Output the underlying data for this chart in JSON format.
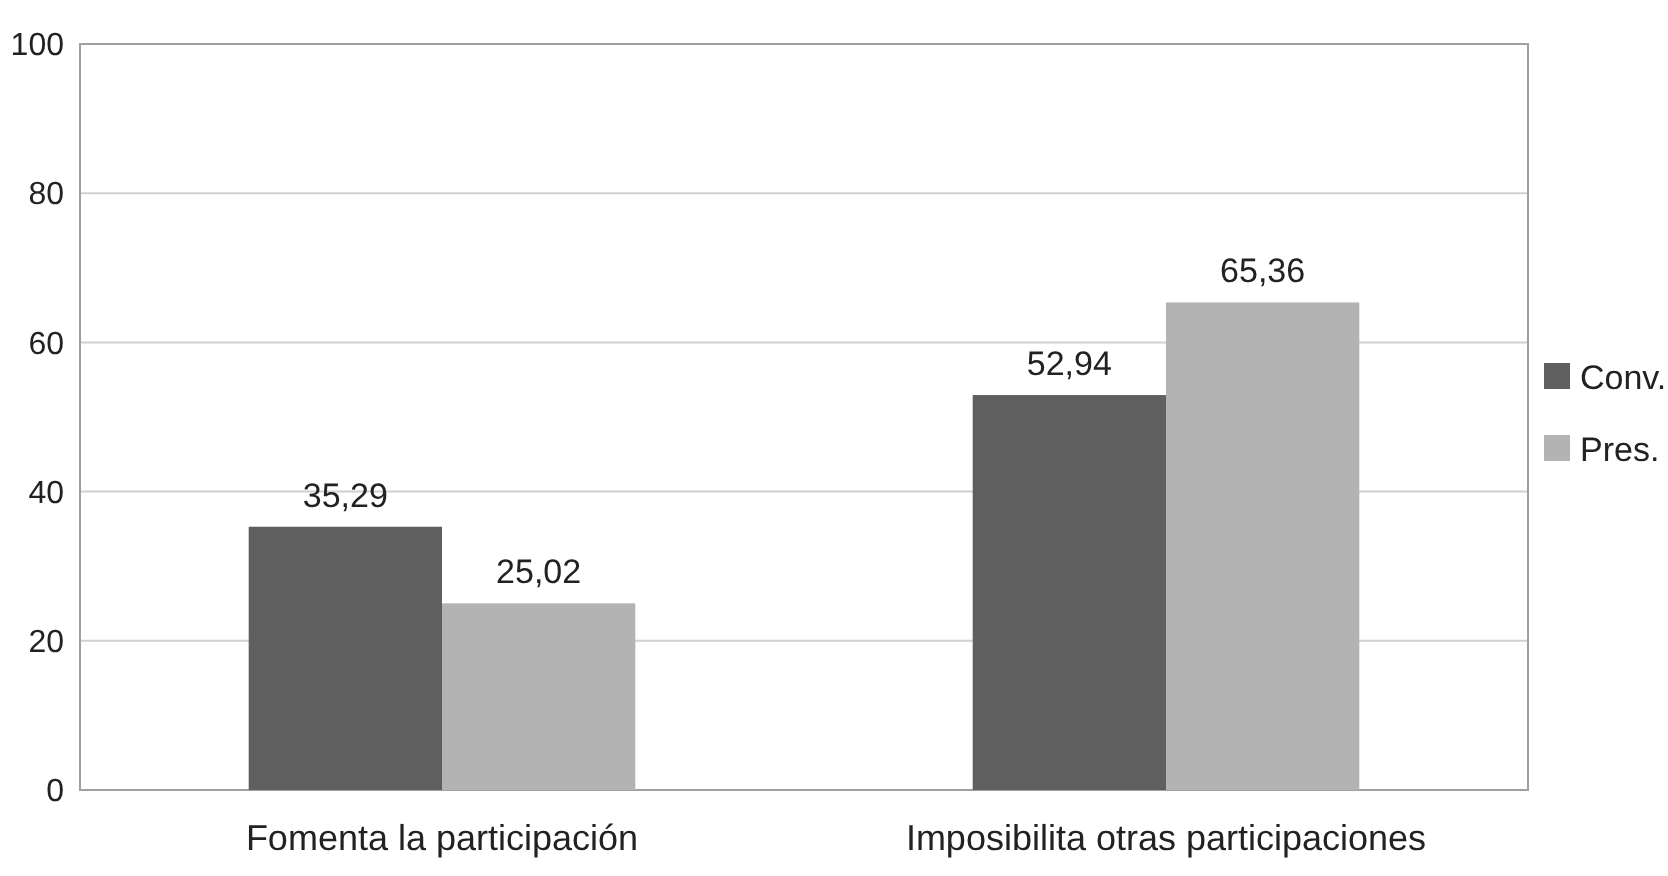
{
  "chart_data": {
    "type": "bar",
    "categories": [
      "Fomenta la participación",
      "Imposibilita otras participaciones"
    ],
    "series": [
      {
        "name": "Conv.",
        "color": "#5f5f5f",
        "values": [
          35.29,
          52.94
        ],
        "value_labels": [
          "35,29",
          "52,94"
        ]
      },
      {
        "name": "Pres.",
        "color": "#b3b3b3",
        "values": [
          25.02,
          65.36
        ],
        "value_labels": [
          "25,02",
          "65,36"
        ]
      }
    ],
    "ylim": [
      0,
      100
    ],
    "yticks": [
      0,
      20,
      40,
      60,
      80,
      100
    ],
    "grid": "y",
    "legend": "right"
  }
}
